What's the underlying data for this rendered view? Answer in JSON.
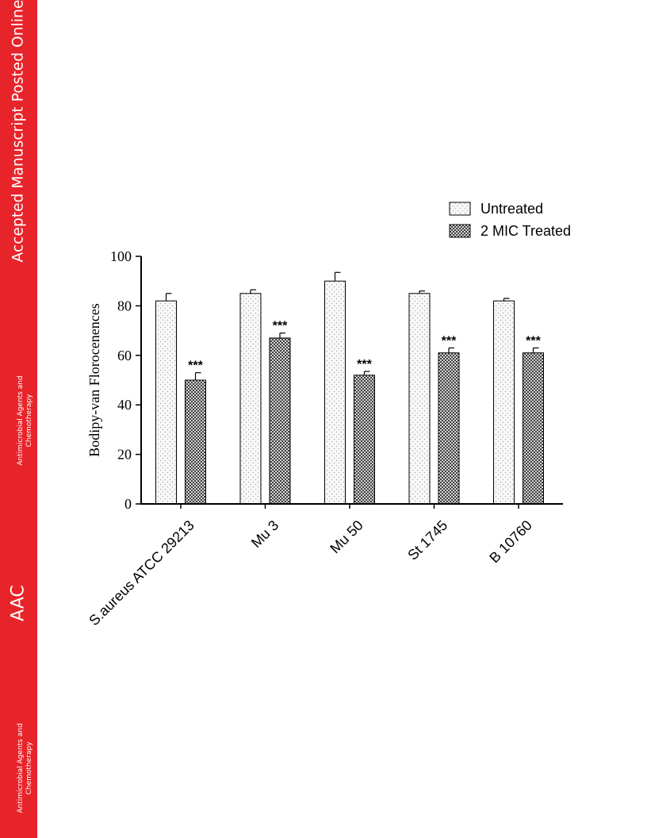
{
  "banner": {
    "title": "Accepted Manuscript Posted Online",
    "abbrev": "AAC",
    "journal_line1": "Antimicrobial Agents and",
    "journal_line2": "Chemotherapy",
    "color": "#e8242b"
  },
  "chart_data": {
    "type": "bar",
    "title": "",
    "xlabel": "",
    "ylabel": "Bodipy-van Florocenences",
    "ylim": [
      0,
      100
    ],
    "yticks": [
      0,
      20,
      40,
      60,
      80,
      100
    ],
    "categories": [
      "S.aureus ATCC 29213",
      "Mu 3",
      "Mu 50",
      "St 1745",
      "B 10760"
    ],
    "series": [
      {
        "name": "Untreated",
        "pattern": "dotted",
        "values": [
          82,
          85,
          90,
          85,
          82
        ],
        "errors": [
          3,
          1.5,
          3.5,
          1,
          1
        ]
      },
      {
        "name": "2 MIC Treated",
        "pattern": "crosshatch",
        "values": [
          50,
          67,
          52,
          61,
          61
        ],
        "errors": [
          3,
          2,
          1.5,
          2,
          2
        ]
      }
    ],
    "annotations": [
      "***",
      "***",
      "***",
      "***",
      "***"
    ],
    "legend_position": "top-right",
    "grid": false
  }
}
